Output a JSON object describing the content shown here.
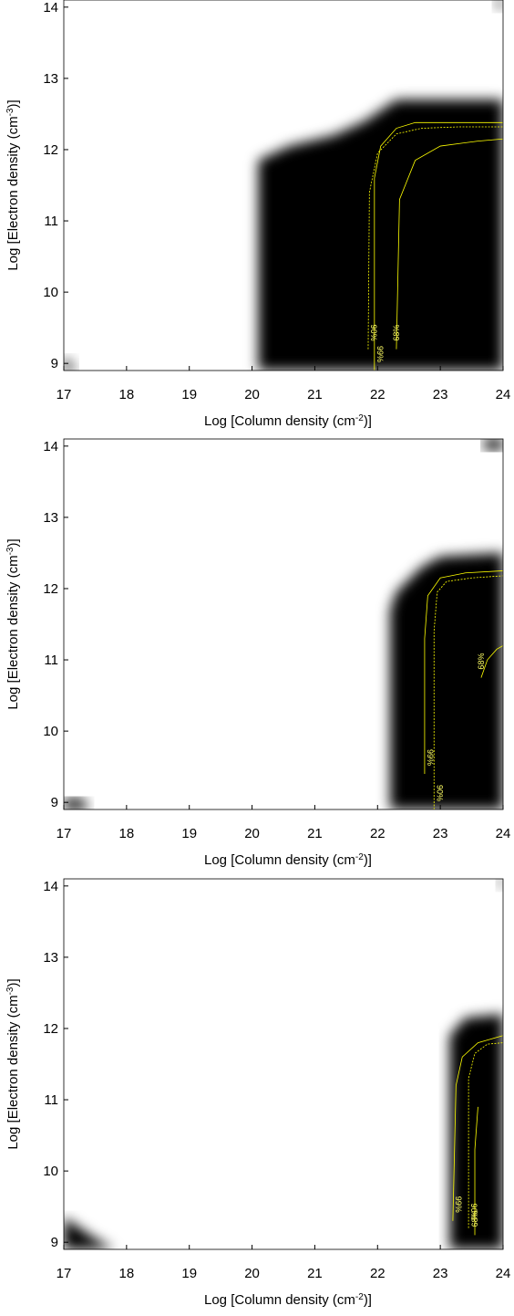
{
  "chart_data": [
    {
      "type": "contour",
      "xlabel": [
        "Log [Column density (cm",
        "-2",
        ")]"
      ],
      "ylabel": [
        "Log [Electron density (cm",
        "-3",
        ")]"
      ],
      "xlim": [
        17,
        24
      ],
      "ylim": [
        8.9,
        14.1
      ],
      "xticks": [
        17,
        18,
        19,
        20,
        21,
        22,
        23,
        24
      ],
      "yticks": [
        9,
        10,
        11,
        12,
        13,
        14
      ],
      "region_color": "#000000",
      "regions": [
        {
          "x": [
            20.1,
            20.1,
            20.6,
            21.3,
            21.8,
            22.3,
            24,
            24
          ],
          "y": [
            8.9,
            11.85,
            12.05,
            12.2,
            12.4,
            12.7,
            12.7,
            8.9
          ]
        },
        {
          "x": [
            17,
            17,
            17.2
          ],
          "y": [
            8.9,
            9.1,
            8.9
          ]
        },
        {
          "x": [
            23.85,
            24,
            24
          ],
          "y": [
            14.1,
            14.1,
            13.95
          ]
        }
      ],
      "contour_color": "#ffff00",
      "contours": [
        {
          "label": "99%",
          "x": [
            21.95,
            21.95,
            22.05,
            22.3,
            22.6,
            23.2,
            24
          ],
          "y": [
            8.9,
            11.6,
            12.05,
            12.3,
            12.38,
            12.38,
            12.38
          ]
        },
        {
          "label": "90%",
          "x": [
            21.85,
            21.87,
            22.0,
            22.3,
            22.7,
            23.3,
            24
          ],
          "y": [
            9.2,
            11.4,
            11.95,
            12.22,
            12.3,
            12.32,
            12.32
          ]
        },
        {
          "label": "68%",
          "x": [
            22.3,
            22.35,
            22.6,
            23.0,
            23.6,
            24
          ],
          "y": [
            9.2,
            11.3,
            11.85,
            12.05,
            12.12,
            12.15
          ]
        }
      ]
    },
    {
      "type": "contour",
      "xlabel": [
        "Log [Column density (cm",
        "-2",
        ")]"
      ],
      "ylabel": [
        "Log [Electron density (cm",
        "-3",
        ")]"
      ],
      "xlim": [
        17,
        24
      ],
      "ylim": [
        8.9,
        14.1
      ],
      "xticks": [
        17,
        18,
        19,
        20,
        21,
        22,
        23,
        24
      ],
      "yticks": [
        9,
        10,
        11,
        12,
        13,
        14
      ],
      "region_color": "#000000",
      "regions": [
        {
          "x": [
            22.2,
            22.2,
            22.3,
            22.7,
            23.0,
            24,
            24
          ],
          "y": [
            8.9,
            11.7,
            11.95,
            12.3,
            12.45,
            12.5,
            8.9
          ]
        },
        {
          "x": [
            17,
            17,
            17.3,
            17.4
          ],
          "y": [
            8.9,
            9.05,
            9.05,
            8.9
          ]
        },
        {
          "x": [
            23.7,
            23.7,
            24,
            24
          ],
          "y": [
            14.1,
            13.95,
            13.95,
            14.1
          ]
        }
      ],
      "contour_color": "#ffff00",
      "contours": [
        {
          "label": "99%",
          "x": [
            22.75,
            22.75,
            22.8,
            23.0,
            23.4,
            24
          ],
          "y": [
            9.4,
            11.3,
            11.9,
            12.15,
            12.22,
            12.25
          ]
        },
        {
          "label": "90%",
          "x": [
            22.9,
            22.9,
            22.95,
            23.1,
            23.5,
            24
          ],
          "y": [
            8.9,
            11.4,
            11.95,
            12.1,
            12.15,
            12.18
          ]
        },
        {
          "label": "68%",
          "x": [
            23.65,
            23.75,
            23.9,
            24
          ],
          "y": [
            10.75,
            11.0,
            11.15,
            11.2
          ]
        }
      ]
    },
    {
      "type": "contour",
      "xlabel": [
        "Log [Column density (cm",
        "-2",
        ")]"
      ],
      "ylabel": [
        "Log [Electron density (cm",
        "-3",
        ")]"
      ],
      "xlim": [
        17,
        24
      ],
      "ylim": [
        8.9,
        14.1
      ],
      "xticks": [
        17,
        18,
        19,
        20,
        21,
        22,
        23,
        24
      ],
      "yticks": [
        9,
        10,
        11,
        12,
        13,
        14
      ],
      "region_color": "#000000",
      "regions": [
        {
          "x": [
            23.15,
            23.15,
            23.4,
            24,
            24
          ],
          "y": [
            8.9,
            11.9,
            12.15,
            12.2,
            8.9
          ]
        },
        {
          "x": [
            17,
            17,
            17.5,
            17.8
          ],
          "y": [
            8.9,
            9.35,
            9.05,
            8.9
          ]
        },
        {
          "x": [
            23.9,
            24,
            24
          ],
          "y": [
            14.1,
            14.1,
            13.95
          ]
        }
      ],
      "contour_color": "#ffff00",
      "contours": [
        {
          "label": "99%",
          "x": [
            23.2,
            23.25,
            23.35,
            23.6,
            24
          ],
          "y": [
            9.3,
            11.2,
            11.6,
            11.8,
            11.9
          ]
        },
        {
          "label": "90%",
          "x": [
            23.45,
            23.45,
            23.55,
            23.75,
            24
          ],
          "y": [
            9.2,
            11.3,
            11.65,
            11.78,
            11.8
          ]
        },
        {
          "label": "68%",
          "x": [
            23.55,
            23.55,
            23.6
          ],
          "y": [
            9.1,
            10.3,
            10.9
          ]
        }
      ]
    }
  ]
}
